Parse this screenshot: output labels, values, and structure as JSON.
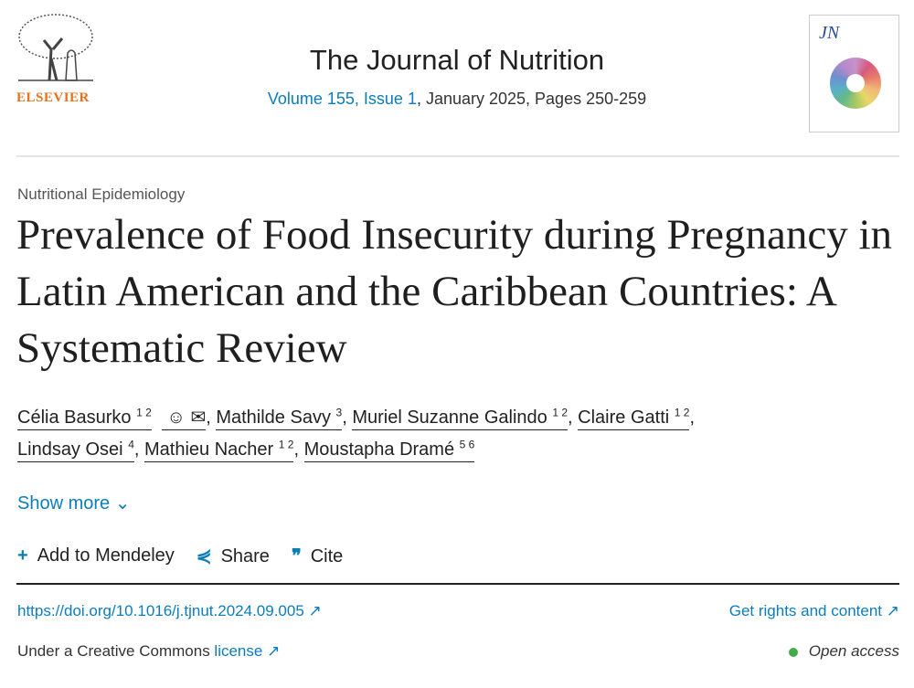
{
  "publisher": {
    "name": "ELSEVIER"
  },
  "journal": {
    "title": "The Journal of Nutrition",
    "volume_link": "Volume 155, Issue 1",
    "details": ", January 2025, Pages 250-259",
    "cover_text": "JN"
  },
  "article": {
    "section": "Nutritional Epidemiology",
    "title": "Prevalence of Food Insecurity during Pregnancy in Latin American and the Caribbean Countries: A Systematic Review",
    "authors": [
      {
        "name": "Célia Basurko",
        "sup": "1 2"
      },
      {
        "name": "Mathilde Savy",
        "sup": "3"
      },
      {
        "name": "Muriel Suzanne Galindo",
        "sup": "1 2"
      },
      {
        "name": "Claire Gatti",
        "sup": "1 2"
      },
      {
        "name": "Lindsay Osei",
        "sup": "4"
      },
      {
        "name": "Mathieu Nacher",
        "sup": "1 2"
      },
      {
        "name": "Moustapha Dramé",
        "sup": "5 6"
      }
    ]
  },
  "show_more": "Show more",
  "actions": {
    "mendeley": "Add to Mendeley",
    "share": "Share",
    "cite": "Cite"
  },
  "doi": "https://doi.org/10.1016/j.tjnut.2024.09.005",
  "rights": "Get rights and content",
  "license_prefix": "Under a Creative Commons ",
  "license_link": "license",
  "open_access": "Open access",
  "colors": {
    "link": "#0c7dbb",
    "publisher": "#e9711c",
    "open_access_dot": "#3fae49"
  }
}
